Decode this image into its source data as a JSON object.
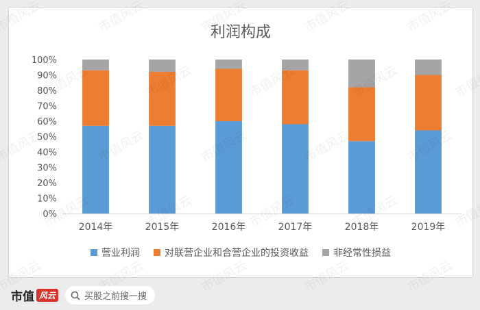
{
  "chart_data": {
    "type": "bar",
    "stacked": true,
    "title": "利润构成",
    "categories": [
      "2014年",
      "2015年",
      "2016年",
      "2017年",
      "2018年",
      "2019年"
    ],
    "series": [
      {
        "name": "营业利润",
        "color": "#5b9bd5",
        "values": [
          57,
          57,
          60,
          58,
          47,
          54
        ]
      },
      {
        "name": "对联营企业和合营企业的投资收益",
        "color": "#ed7d31",
        "values": [
          36,
          35,
          34,
          35,
          35,
          36
        ]
      },
      {
        "name": "非经常性损益",
        "color": "#a5a5a5",
        "values": [
          7,
          8,
          6,
          7,
          18,
          10
        ]
      }
    ],
    "ylim": [
      0,
      100
    ],
    "yticks": [
      "0%",
      "10%",
      "20%",
      "30%",
      "40%",
      "50%",
      "60%",
      "70%",
      "80%",
      "90%",
      "100%"
    ],
    "legend_position": "bottom",
    "grid": false
  },
  "watermark_text": "市值风云",
  "footer": {
    "brand_name": "市值",
    "brand_badge": "风云",
    "search_text": "买股之前搜一搜",
    "search_icon": "search-icon"
  }
}
